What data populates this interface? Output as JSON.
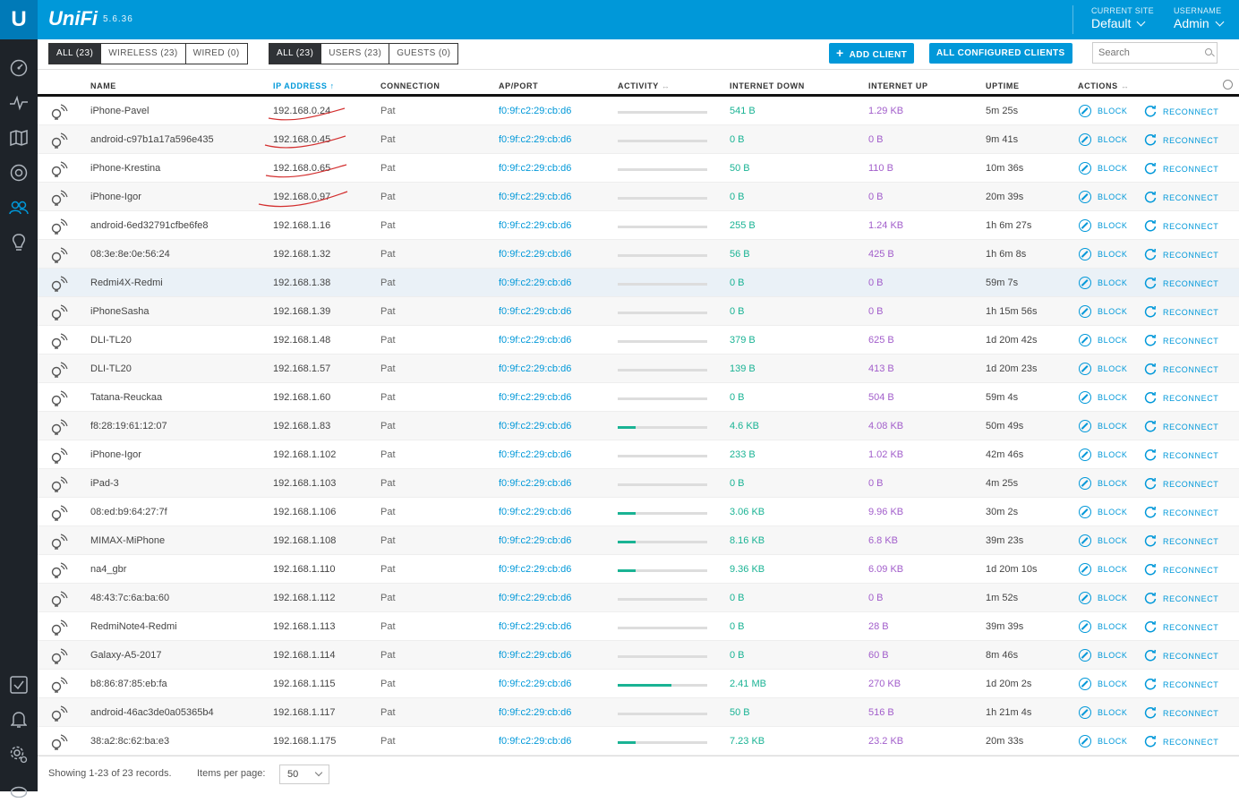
{
  "header": {
    "brand": "UniFi",
    "version": "5.6.36",
    "site_label": "CURRENT SITE",
    "site_value": "Default",
    "user_label": "USERNAME",
    "user_value": "Admin"
  },
  "toolbar": {
    "filter_type": [
      "ALL (23)",
      "WIRELESS (23)",
      "WIRED (0)"
    ],
    "filter_user": [
      "ALL (23)",
      "USERS (23)",
      "GUESTS (0)"
    ],
    "add_client": "ADD CLIENT",
    "all_configured": "ALL CONFIGURED CLIENTS",
    "search_placeholder": "Search"
  },
  "columns": {
    "name": "NAME",
    "ip": "IP ADDRESS",
    "connection": "CONNECTION",
    "ap_port": "AP/PORT",
    "activity": "ACTIVITY",
    "down": "INTERNET DOWN",
    "up": "INTERNET UP",
    "uptime": "UPTIME",
    "actions": "ACTIONS"
  },
  "actions": {
    "block": "BLOCK",
    "reconnect": "RECONNECT"
  },
  "clients": [
    {
      "name": "iPhone-Pavel",
      "ip": "192.168.0.24",
      "conn": "Pat",
      "ap": "f0:9f:c2:29:cb:d6",
      "activity": 0,
      "down": "541 B",
      "up": "1.29 KB",
      "uptime": "5m 25s"
    },
    {
      "name": "android-c97b1a17a596e435",
      "ip": "192.168.0.45",
      "conn": "Pat",
      "ap": "f0:9f:c2:29:cb:d6",
      "activity": 0,
      "down": "0 B",
      "up": "0 B",
      "uptime": "9m 41s"
    },
    {
      "name": "iPhone-Krestina",
      "ip": "192.168.0.65",
      "conn": "Pat",
      "ap": "f0:9f:c2:29:cb:d6",
      "activity": 0,
      "down": "50 B",
      "up": "110 B",
      "uptime": "10m 36s"
    },
    {
      "name": "iPhone-Igor",
      "ip": "192.168.0.97",
      "conn": "Pat",
      "ap": "f0:9f:c2:29:cb:d6",
      "activity": 0,
      "down": "0 B",
      "up": "0 B",
      "uptime": "20m 39s"
    },
    {
      "name": "android-6ed32791cfbe6fe8",
      "ip": "192.168.1.16",
      "conn": "Pat",
      "ap": "f0:9f:c2:29:cb:d6",
      "activity": 0,
      "down": "255 B",
      "up": "1.24 KB",
      "uptime": "1h 6m 27s"
    },
    {
      "name": "08:3e:8e:0e:56:24",
      "ip": "192.168.1.32",
      "conn": "Pat",
      "ap": "f0:9f:c2:29:cb:d6",
      "activity": 0,
      "down": "56 B",
      "up": "425 B",
      "uptime": "1h 6m 8s"
    },
    {
      "name": "Redmi4X-Redmi",
      "ip": "192.168.1.38",
      "conn": "Pat",
      "ap": "f0:9f:c2:29:cb:d6",
      "activity": 0,
      "down": "0 B",
      "up": "0 B",
      "uptime": "59m 7s"
    },
    {
      "name": "iPhoneSasha",
      "ip": "192.168.1.39",
      "conn": "Pat",
      "ap": "f0:9f:c2:29:cb:d6",
      "activity": 0,
      "down": "0 B",
      "up": "0 B",
      "uptime": "1h 15m 56s"
    },
    {
      "name": "DLI-TL20",
      "ip": "192.168.1.48",
      "conn": "Pat",
      "ap": "f0:9f:c2:29:cb:d6",
      "activity": 0,
      "down": "379 B",
      "up": "625 B",
      "uptime": "1d 20m 42s"
    },
    {
      "name": "DLI-TL20",
      "ip": "192.168.1.57",
      "conn": "Pat",
      "ap": "f0:9f:c2:29:cb:d6",
      "activity": 0,
      "down": "139 B",
      "up": "413 B",
      "uptime": "1d 20m 23s"
    },
    {
      "name": "Tatana-Reuckaa",
      "ip": "192.168.1.60",
      "conn": "Pat",
      "ap": "f0:9f:c2:29:cb:d6",
      "activity": 0,
      "down": "0 B",
      "up": "504 B",
      "uptime": "59m 4s"
    },
    {
      "name": "f8:28:19:61:12:07",
      "ip": "192.168.1.83",
      "conn": "Pat",
      "ap": "f0:9f:c2:29:cb:d6",
      "activity": 0.2,
      "down": "4.6 KB",
      "up": "4.08 KB",
      "uptime": "50m 49s"
    },
    {
      "name": "iPhone-Igor",
      "ip": "192.168.1.102",
      "conn": "Pat",
      "ap": "f0:9f:c2:29:cb:d6",
      "activity": 0,
      "down": "233 B",
      "up": "1.02 KB",
      "uptime": "42m 46s"
    },
    {
      "name": "iPad-3",
      "ip": "192.168.1.103",
      "conn": "Pat",
      "ap": "f0:9f:c2:29:cb:d6",
      "activity": 0,
      "down": "0 B",
      "up": "0 B",
      "uptime": "4m 25s"
    },
    {
      "name": "08:ed:b9:64:27:7f",
      "ip": "192.168.1.106",
      "conn": "Pat",
      "ap": "f0:9f:c2:29:cb:d6",
      "activity": 0.2,
      "down": "3.06 KB",
      "up": "9.96 KB",
      "uptime": "30m 2s"
    },
    {
      "name": "MIMAX-MiPhone",
      "ip": "192.168.1.108",
      "conn": "Pat",
      "ap": "f0:9f:c2:29:cb:d6",
      "activity": 0.2,
      "down": "8.16 KB",
      "up": "6.8 KB",
      "uptime": "39m 23s"
    },
    {
      "name": "na4_gbr",
      "ip": "192.168.1.110",
      "conn": "Pat",
      "ap": "f0:9f:c2:29:cb:d6",
      "activity": 0.2,
      "down": "9.36 KB",
      "up": "6.09 KB",
      "uptime": "1d 20m 10s"
    },
    {
      "name": "48:43:7c:6a:ba:60",
      "ip": "192.168.1.112",
      "conn": "Pat",
      "ap": "f0:9f:c2:29:cb:d6",
      "activity": 0,
      "down": "0 B",
      "up": "0 B",
      "uptime": "1m 52s"
    },
    {
      "name": "RedmiNote4-Redmi",
      "ip": "192.168.1.113",
      "conn": "Pat",
      "ap": "f0:9f:c2:29:cb:d6",
      "activity": 0,
      "down": "0 B",
      "up": "28 B",
      "uptime": "39m 39s"
    },
    {
      "name": "Galaxy-A5-2017",
      "ip": "192.168.1.114",
      "conn": "Pat",
      "ap": "f0:9f:c2:29:cb:d6",
      "activity": 0,
      "down": "0 B",
      "up": "60 B",
      "uptime": "8m 46s"
    },
    {
      "name": "b8:86:87:85:eb:fa",
      "ip": "192.168.1.115",
      "conn": "Pat",
      "ap": "f0:9f:c2:29:cb:d6",
      "activity": 0.6,
      "down": "2.41 MB",
      "up": "270 KB",
      "uptime": "1d 20m 2s"
    },
    {
      "name": "android-46ac3de0a05365b4",
      "ip": "192.168.1.117",
      "conn": "Pat",
      "ap": "f0:9f:c2:29:cb:d6",
      "activity": 0,
      "down": "50 B",
      "up": "516 B",
      "uptime": "1h 21m 4s"
    },
    {
      "name": "38:a2:8c:62:ba:e3",
      "ip": "192.168.1.175",
      "conn": "Pat",
      "ap": "f0:9f:c2:29:cb:d6",
      "activity": 0.2,
      "down": "7.23 KB",
      "up": "23.2 KB",
      "uptime": "20m 33s"
    }
  ],
  "footer": {
    "showing": "Showing 1-23 of 23 records.",
    "items_label": "Items per page:",
    "per_page": "50"
  },
  "colors": {
    "accent": "#0098d9",
    "down": "#1ab394",
    "up": "#a25ecb"
  }
}
